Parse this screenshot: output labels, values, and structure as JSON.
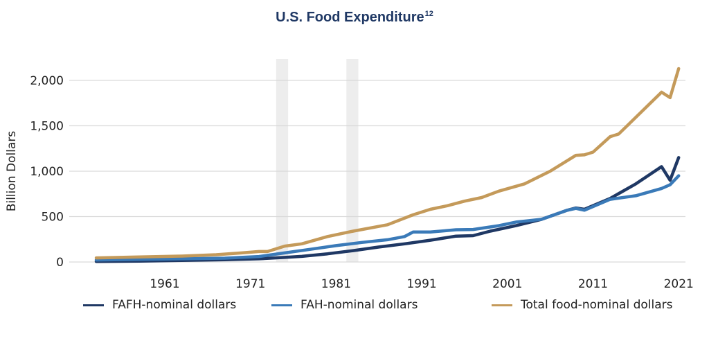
{
  "chart_data": {
    "type": "line",
    "title": "U.S. Food Expenditure",
    "title_superscript": "12",
    "xlabel": "",
    "ylabel": "Billion Dollars",
    "xlim": [
      1952,
      2022
    ],
    "ylim": [
      0,
      2100
    ],
    "yticks": [
      0,
      500,
      1000,
      1500,
      2000
    ],
    "ytick_labels": [
      "0",
      "500",
      "1,000",
      "1,500",
      "2,000"
    ],
    "xticks": [
      1961,
      1971,
      1981,
      1991,
      2001,
      2011,
      2021
    ],
    "xtick_labels": [
      "1961",
      "1971",
      "1981",
      "1991",
      "2001",
      "2011",
      "2021"
    ],
    "grid": "horizontal",
    "legend_position": "bottom",
    "shaded_periods": [
      {
        "start": 1974.0,
        "end": 1975.4
      },
      {
        "start": 1982.2,
        "end": 1983.6
      }
    ],
    "series": [
      {
        "name": "FAFH-nominal dollars",
        "color": "#1f3864",
        "points": [
          [
            1953,
            5
          ],
          [
            1958,
            10
          ],
          [
            1963,
            17
          ],
          [
            1968,
            25
          ],
          [
            1972,
            35
          ],
          [
            1975,
            50
          ],
          [
            1977,
            62
          ],
          [
            1980,
            90
          ],
          [
            1983,
            125
          ],
          [
            1986,
            165
          ],
          [
            1989,
            200
          ],
          [
            1992,
            240
          ],
          [
            1995,
            285
          ],
          [
            1997,
            290
          ],
          [
            1999,
            340
          ],
          [
            2002,
            400
          ],
          [
            2005,
            470
          ],
          [
            2008,
            570
          ],
          [
            2009,
            595
          ],
          [
            2010,
            580
          ],
          [
            2013,
            700
          ],
          [
            2016,
            860
          ],
          [
            2019,
            1050
          ],
          [
            2020,
            900
          ],
          [
            2021,
            1150
          ]
        ]
      },
      {
        "name": "FAH-nominal dollars",
        "color": "#3a7ab8",
        "points": [
          [
            1953,
            22
          ],
          [
            1958,
            28
          ],
          [
            1963,
            35
          ],
          [
            1968,
            42
          ],
          [
            1972,
            60
          ],
          [
            1975,
            100
          ],
          [
            1978,
            140
          ],
          [
            1981,
            180
          ],
          [
            1984,
            215
          ],
          [
            1987,
            245
          ],
          [
            1989,
            280
          ],
          [
            1990,
            330
          ],
          [
            1992,
            330
          ],
          [
            1995,
            355
          ],
          [
            1997,
            358
          ],
          [
            2000,
            400
          ],
          [
            2002,
            440
          ],
          [
            2005,
            470
          ],
          [
            2008,
            570
          ],
          [
            2009,
            590
          ],
          [
            2010,
            570
          ],
          [
            2013,
            690
          ],
          [
            2016,
            730
          ],
          [
            2019,
            810
          ],
          [
            2020,
            850
          ],
          [
            2021,
            950
          ]
        ]
      },
      {
        "name": "Total food-nominal dollars",
        "color": "#c49a5a",
        "points": [
          [
            1953,
            45
          ],
          [
            1958,
            55
          ],
          [
            1963,
            65
          ],
          [
            1967,
            80
          ],
          [
            1970,
            100
          ],
          [
            1972,
            115
          ],
          [
            1973,
            115
          ],
          [
            1975,
            175
          ],
          [
            1977,
            200
          ],
          [
            1980,
            280
          ],
          [
            1983,
            340
          ],
          [
            1987,
            410
          ],
          [
            1990,
            520
          ],
          [
            1992,
            580
          ],
          [
            1994,
            620
          ],
          [
            1996,
            670
          ],
          [
            1998,
            710
          ],
          [
            2000,
            780
          ],
          [
            2003,
            860
          ],
          [
            2006,
            1000
          ],
          [
            2009,
            1175
          ],
          [
            2010,
            1180
          ],
          [
            2011,
            1210
          ],
          [
            2013,
            1380
          ],
          [
            2014,
            1410
          ],
          [
            2019,
            1870
          ],
          [
            2020,
            1810
          ],
          [
            2021,
            2130
          ]
        ]
      }
    ]
  }
}
